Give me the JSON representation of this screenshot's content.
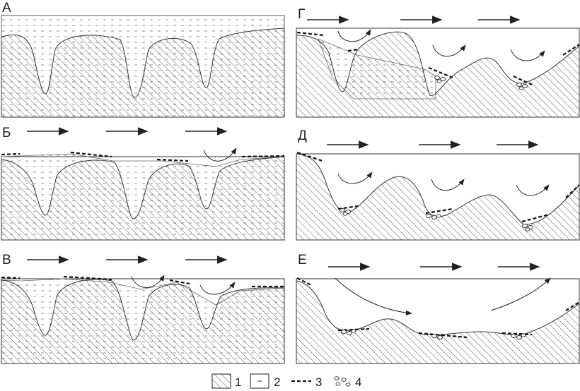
{
  "panels": [
    {
      "id": "a",
      "label": "А"
    },
    {
      "id": "b",
      "label": "Б"
    },
    {
      "id": "v",
      "label": "В"
    },
    {
      "id": "g",
      "label": "Г"
    },
    {
      "id": "d",
      "label": "Д"
    },
    {
      "id": "e",
      "label": "Е"
    }
  ],
  "legend": [
    {
      "symbol": "bedrock-hatch",
      "label": "1"
    },
    {
      "symbol": "sediment-fill",
      "label": "2"
    },
    {
      "symbol": "dashed-line",
      "label": "3"
    },
    {
      "symbol": "pebbles",
      "label": "4"
    }
  ],
  "colors": {
    "ink": "#222222",
    "background": "#ffffff"
  }
}
